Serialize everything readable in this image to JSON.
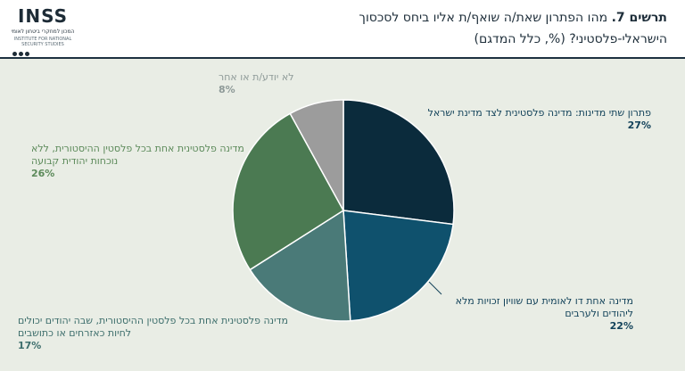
{
  "header": {
    "logo_text": "INSS",
    "logo_subtitle": "המכון למחקרי ביטחון לאומי",
    "logo_subtitle2": "INSTITUTE FOR NATIONAL SECURITY STUDIES",
    "title_bold": "תרשים 7.",
    "title_line1": "מהו הפתרון שאת/ה שואף/ת אליו ביחס לסכסוך",
    "title_line2": "הישראלי-פלסטיני? (%, כלל המדגם)"
  },
  "chart_data": {
    "type": "pie",
    "start_angle_deg": 0,
    "direction": "clockwise",
    "slices": [
      {
        "label": "פתרון שתי מדינות: מדינה פלסטינית לצד מדינת ישראל",
        "value": 27,
        "value_label": "27%",
        "color": "#0b2b3c",
        "label_color": "#12425a"
      },
      {
        "label": "מדינה אחת דו לאומית עם שוויון זכויות מלא ליהודים ולערבים",
        "value": 22,
        "value_label": "22%",
        "color": "#0f516d",
        "label_color": "#12425a"
      },
      {
        "label": "מדינה פלסטינית אחת בכל פלסטין ההיסטורית, שבה יהודים יכולים לחיות כאזרחים או כתושבים",
        "value": 17,
        "value_label": "17%",
        "color": "#4a7a78",
        "label_color": "#3d6e6c"
      },
      {
        "label": "מדינה פלסטינית אחת בכל פלסטין ההיסטורית, ללא נוכחות יהודית קבועה",
        "value": 26,
        "value_label": "26%",
        "color": "#4b7a52",
        "label_color": "#5c8a5a"
      },
      {
        "label": "לא יודע/ת או אחר",
        "value": 8,
        "value_label": "8%",
        "color": "#9c9c9c",
        "label_color": "#8e9a98"
      }
    ]
  }
}
